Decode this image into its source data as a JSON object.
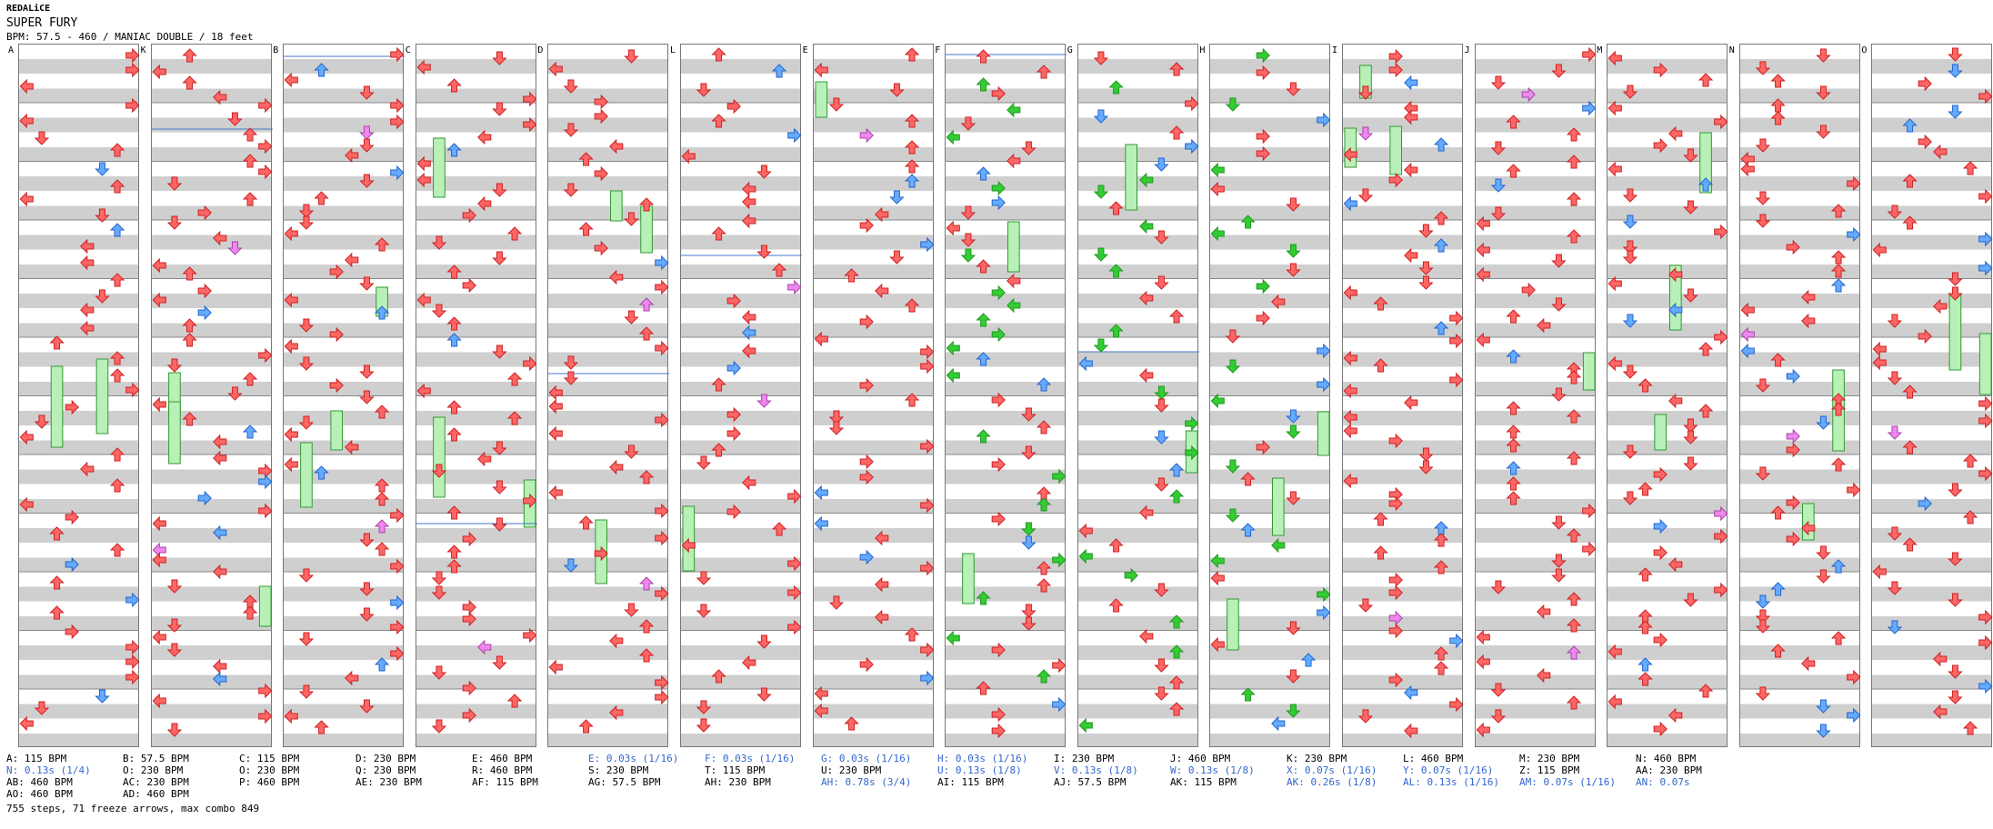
{
  "header": {
    "author": "REDALiCE",
    "song": "SUPER FURY",
    "info": "BPM: 57.5 - 460 / MANIAC DOUBLE / 18 feet"
  },
  "colors": {
    "red": "#ff6666",
    "blue": "#66aaff",
    "green": "#33cc33",
    "pink": "#ee88ee",
    "freeze": "#b8f0b8"
  },
  "chart_data": {
    "type": "table",
    "columns": 15,
    "markers": [
      "A",
      "K",
      "B",
      "C",
      "D",
      "L",
      "E",
      "F",
      "G",
      "H",
      "I",
      "J",
      "M",
      "N",
      "O",
      "P",
      "Q",
      "R",
      "S",
      "T",
      "U",
      "V",
      "W",
      "X",
      "Y",
      "Z",
      "AA",
      "AB",
      "AC",
      "AD",
      "AE",
      "AF",
      "AG",
      "AH",
      "AI",
      "AJ",
      "AK",
      "AL",
      "AM",
      "AN"
    ]
  },
  "legend": [
    {
      "t": "A: 115 BPM",
      "blue": false
    },
    {
      "t": "B: 57.5 BPM",
      "blue": false
    },
    {
      "t": "C: 115 BPM",
      "blue": false
    },
    {
      "t": "D: 230 BPM",
      "blue": false
    },
    {
      "t": "E: 460 BPM",
      "blue": false
    },
    {
      "t": "E: 0.03s (1/16)",
      "blue": true
    },
    {
      "t": "F: 0.03s (1/16)",
      "blue": true
    },
    {
      "t": "G: 0.03s (1/16)",
      "blue": true
    },
    {
      "t": "H: 0.03s (1/16)",
      "blue": true
    },
    {
      "t": "I: 230 BPM",
      "blue": false
    },
    {
      "t": "J: 460 BPM",
      "blue": false
    },
    {
      "t": "K: 230 BPM",
      "blue": false
    },
    {
      "t": "L: 460 BPM",
      "blue": false
    },
    {
      "t": "M: 230 BPM",
      "blue": false
    },
    {
      "t": "N: 460 BPM",
      "blue": false
    },
    {
      "t": "N: 0.13s (1/4)",
      "blue": true
    },
    {
      "t": "O: 230 BPM",
      "blue": false
    },
    {
      "t": "O: 230 BPM",
      "blue": false
    },
    {
      "t": "Q: 230 BPM",
      "blue": false
    },
    {
      "t": "R: 460 BPM",
      "blue": false
    },
    {
      "t": "S: 230 BPM",
      "blue": false
    },
    {
      "t": "T: 115 BPM",
      "blue": false
    },
    {
      "t": "U: 230 BPM",
      "blue": false
    },
    {
      "t": "U: 0.13s (1/8)",
      "blue": true
    },
    {
      "t": "V: 0.13s (1/8)",
      "blue": true
    },
    {
      "t": "W: 0.13s (1/8)",
      "blue": true
    },
    {
      "t": "X: 0.07s (1/16)",
      "blue": true
    },
    {
      "t": "Y: 0.07s (1/16)",
      "blue": true
    },
    {
      "t": "Z: 115 BPM",
      "blue": false
    },
    {
      "t": "AA: 230 BPM",
      "blue": false
    },
    {
      "t": "AB: 460 BPM",
      "blue": false
    },
    {
      "t": "AC: 230 BPM",
      "blue": false
    },
    {
      "t": "P: 460 BPM",
      "blue": false
    },
    {
      "t": "AE: 230 BPM",
      "blue": false
    },
    {
      "t": "AF: 115 BPM",
      "blue": false
    },
    {
      "t": "AG: 57.5 BPM",
      "blue": false
    },
    {
      "t": "AH: 230 BPM",
      "blue": false
    },
    {
      "t": "AH: 0.78s (3/4)",
      "blue": true
    },
    {
      "t": "AI: 115 BPM",
      "blue": false
    },
    {
      "t": "AJ: 57.5 BPM",
      "blue": false
    },
    {
      "t": "AK: 115 BPM",
      "blue": false
    },
    {
      "t": "AK: 0.26s (1/8)",
      "blue": true
    },
    {
      "t": "AL: 0.13s (1/16)",
      "blue": true
    },
    {
      "t": "AM: 0.07s (1/16)",
      "blue": true
    },
    {
      "t": "AN: 0.07s",
      "blue": true
    },
    {
      "t": "AO: 460 BPM",
      "blue": false
    },
    {
      "t": "AD: 460 BPM",
      "blue": false
    }
  ],
  "footer": "755 steps, 71 freeze arrows, max combo 849"
}
